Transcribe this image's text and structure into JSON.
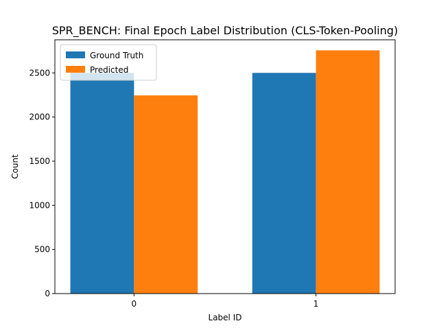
{
  "chart_data": {
    "type": "bar",
    "title": "SPR_BENCH: Final Epoch Label Distribution (CLS-Token-Pooling)",
    "xlabel": "Label ID",
    "ylabel": "Count",
    "categories": [
      "0",
      "1"
    ],
    "series": [
      {
        "name": "Ground Truth",
        "values": [
          2500,
          2500
        ],
        "color": "#1f77b4"
      },
      {
        "name": "Predicted",
        "values": [
          2245,
          2755
        ],
        "color": "#ff7f0e"
      }
    ],
    "ylim": [
      0,
      2875
    ],
    "yticks": [
      0,
      500,
      1000,
      1500,
      2000,
      2500
    ],
    "grid": false,
    "legend_position": "upper-left"
  }
}
